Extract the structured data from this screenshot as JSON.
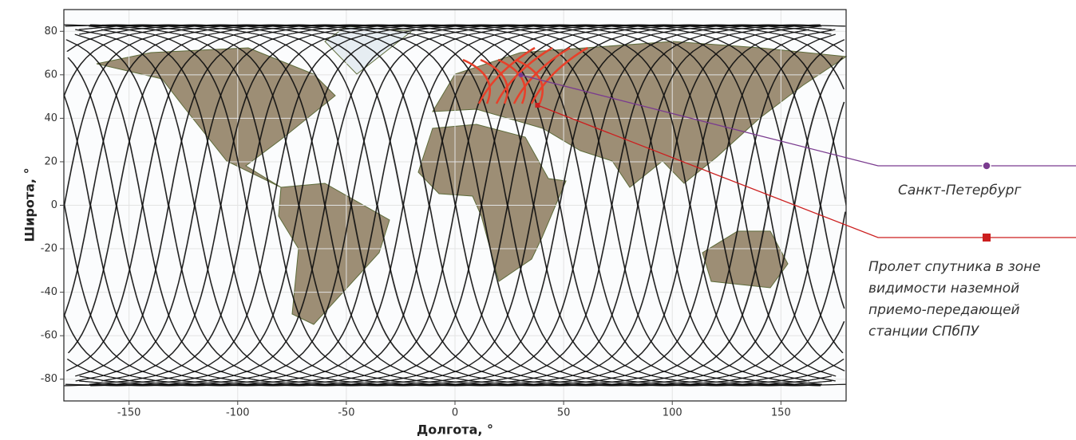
{
  "chart_data": {
    "type": "map",
    "x_label": "Долгота, °",
    "y_label": "Широта, °",
    "xlim": [
      -180,
      180
    ],
    "xticks": [
      -150,
      -100,
      -50,
      0,
      50,
      100,
      150
    ],
    "ylim": [
      -90,
      90
    ],
    "yticks": [
      -80,
      -60,
      -40,
      -20,
      0,
      20,
      40,
      60,
      80
    ],
    "grid": true,
    "series": [
      {
        "name": "Санкт-Петербург",
        "color": "#7a3b8f",
        "marker": "circle",
        "x": [
          30.3
        ],
        "y": [
          59.9
        ]
      },
      {
        "name": "Пролет спутника в зоне\nвидимости наземной\nприемо-передающей\nстанции СПбПУ",
        "color": "#cc1f1f",
        "marker": "square",
        "x": [
          38
        ],
        "y": [
          46
        ]
      }
    ]
  }
}
